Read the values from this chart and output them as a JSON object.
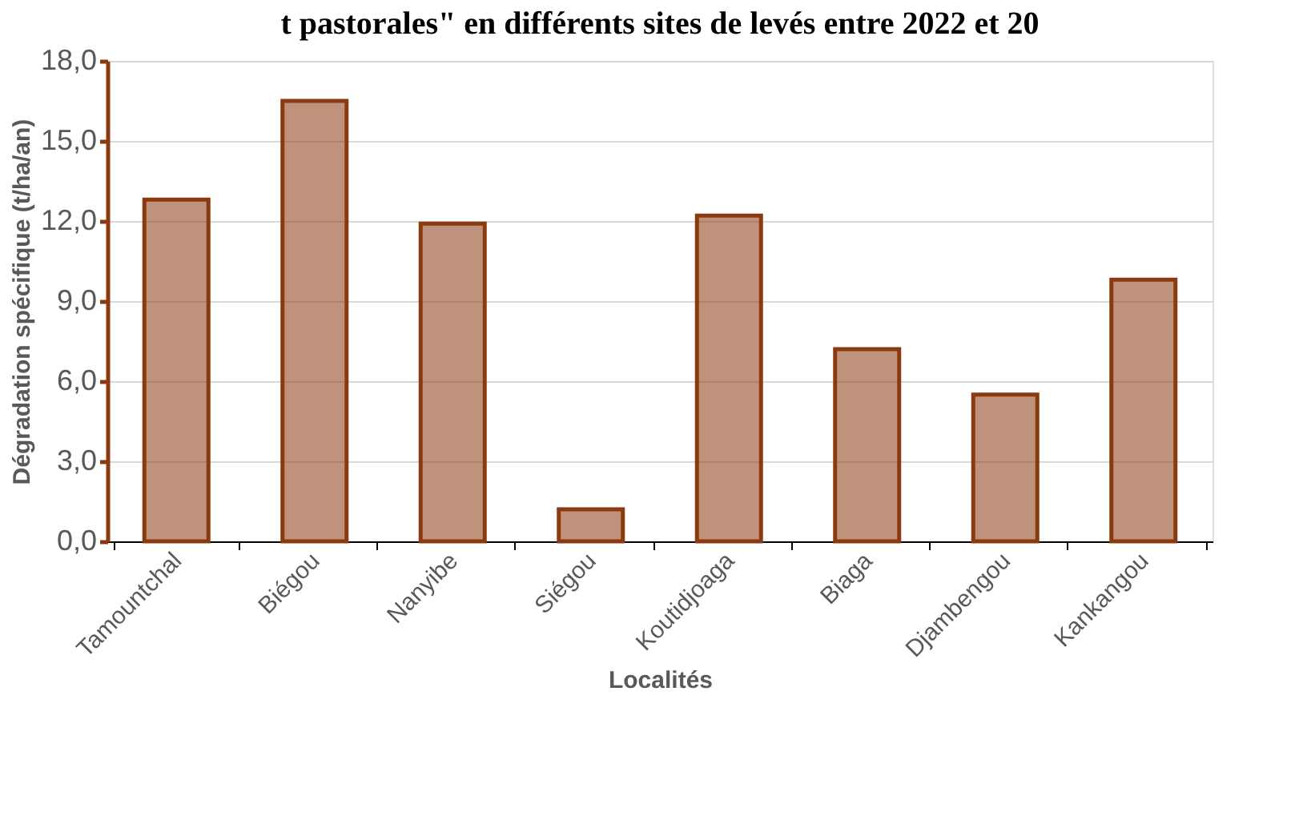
{
  "chart_data": {
    "type": "bar",
    "title": "t pastorales\" en différents sites de levés entre 2022 et 20",
    "xlabel": "Localités",
    "ylabel": "Dégradation spécifique (t/ha/an)",
    "categories": [
      "Tamountchal",
      "Biégou",
      "Nanyibe",
      "Siégou",
      "Koutidjoaga",
      "Biaga",
      "Djambengou",
      "Kankangou"
    ],
    "values": [
      12.8,
      16.5,
      11.9,
      1.2,
      12.2,
      7.2,
      5.5,
      9.8
    ],
    "color": "#8b3a0f",
    "ylim": [
      0,
      18
    ],
    "yticks": [
      {
        "value": 0,
        "label": "0,0"
      },
      {
        "value": 3,
        "label": "3,0"
      },
      {
        "value": 6,
        "label": "6,0"
      },
      {
        "value": 9,
        "label": "9,0"
      },
      {
        "value": 12,
        "label": "12,0"
      },
      {
        "value": 15,
        "label": "15,0"
      },
      {
        "value": 18,
        "label": "18,0"
      }
    ],
    "grid": "y"
  }
}
